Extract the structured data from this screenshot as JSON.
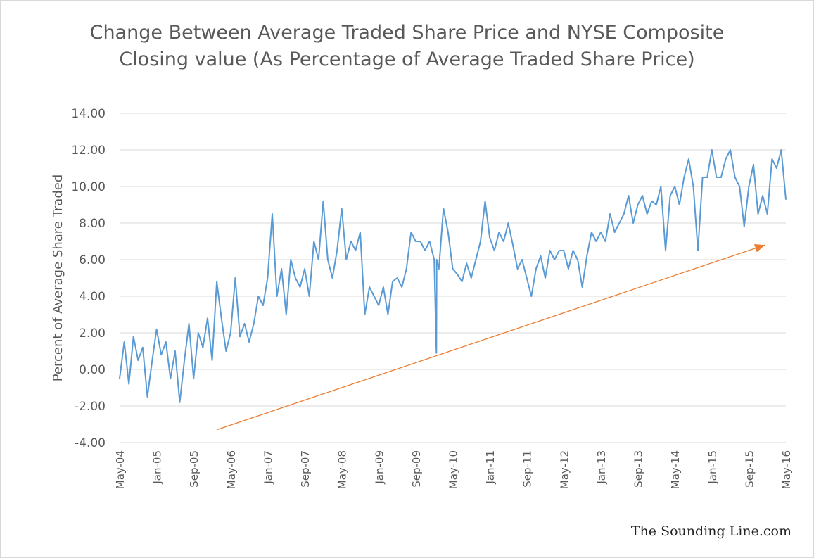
{
  "chart_data": {
    "type": "line",
    "title_line1": "Change Between Average Traded Share Price and NYSE Composite",
    "title_line2": "Closing value (As Percentage of Average Traded Share Price)",
    "xlabel": "",
    "ylabel": "Percent of Average Share Traded",
    "ylim": [
      -4,
      14
    ],
    "yticks": [
      "-4.00",
      "-2.00",
      "0.00",
      "2.00",
      "4.00",
      "6.00",
      "8.00",
      "10.00",
      "12.00",
      "14.00"
    ],
    "xlim": [
      "2004-05",
      "2016-05"
    ],
    "xticks": [
      "May-04",
      "Jan-05",
      "Sep-05",
      "May-06",
      "Jan-07",
      "Sep-07",
      "May-08",
      "Jan-09",
      "Sep-09",
      "May-10",
      "Jan-11",
      "Sep-11",
      "May-12",
      "Jan-13",
      "Sep-13",
      "May-14",
      "Jan-15",
      "Sep-15",
      "May-16"
    ],
    "grid": true,
    "legend": "none",
    "series_color": "#5b9bd5",
    "annotation_color": "#ed7d31",
    "series": [
      {
        "x": [
          "2004-05",
          "2004-06",
          "2004-07",
          "2004-08",
          "2004-09",
          "2004-10",
          "2004-11",
          "2004-12",
          "2005-01",
          "2005-02",
          "2005-03",
          "2005-04",
          "2005-05",
          "2005-06",
          "2005-07",
          "2005-08",
          "2005-09",
          "2005-10",
          "2005-11",
          "2005-12",
          "2006-01",
          "2006-02",
          "2006-03",
          "2006-04",
          "2006-05",
          "2006-06",
          "2006-07",
          "2006-08",
          "2006-09",
          "2006-10",
          "2006-11",
          "2006-12",
          "2007-01",
          "2007-02",
          "2007-03",
          "2007-04",
          "2007-05",
          "2007-06",
          "2007-07",
          "2007-08",
          "2007-09",
          "2007-10",
          "2007-11",
          "2007-12",
          "2008-01",
          "2008-02",
          "2008-03",
          "2008-04",
          "2008-05",
          "2008-06",
          "2008-07",
          "2008-08",
          "2008-09",
          "2008-10",
          "2008-11",
          "2008-12",
          "2009-01",
          "2009-02",
          "2009-03",
          "2009-04",
          "2009-05",
          "2009-06",
          "2009-07",
          "2009-08",
          "2009-09",
          "2009-10",
          "2009-11",
          "2009-12",
          "2010-01",
          "2010-01-15",
          "2010-01-17",
          "2010-02",
          "2010-03",
          "2010-04",
          "2010-05",
          "2010-06",
          "2010-07",
          "2010-08",
          "2010-09",
          "2010-10",
          "2010-11",
          "2010-12",
          "2011-01",
          "2011-02",
          "2011-03",
          "2011-04",
          "2011-05",
          "2011-06",
          "2011-07",
          "2011-08",
          "2011-09",
          "2011-10",
          "2011-11",
          "2011-12",
          "2012-01",
          "2012-02",
          "2012-03",
          "2012-04",
          "2012-05",
          "2012-06",
          "2012-07",
          "2012-08",
          "2012-09",
          "2012-10",
          "2012-11",
          "2012-12",
          "2013-01",
          "2013-02",
          "2013-03",
          "2013-04",
          "2013-05",
          "2013-06",
          "2013-07",
          "2013-08",
          "2013-09",
          "2013-10",
          "2013-11",
          "2013-12",
          "2014-01",
          "2014-02",
          "2014-03",
          "2014-04",
          "2014-05",
          "2014-06",
          "2014-07",
          "2014-08",
          "2014-09",
          "2014-10",
          "2014-11",
          "2014-12",
          "2015-01",
          "2015-02",
          "2015-03",
          "2015-04",
          "2015-05",
          "2015-06",
          "2015-07",
          "2015-08",
          "2015-09",
          "2015-10",
          "2015-11",
          "2015-12",
          "2016-01",
          "2016-02",
          "2016-03",
          "2016-04",
          "2016-05"
        ],
        "values": [
          -0.5,
          1.5,
          -0.8,
          1.8,
          0.5,
          1.2,
          -1.5,
          0.4,
          2.2,
          0.8,
          1.5,
          -0.5,
          1.0,
          -1.8,
          0.5,
          2.5,
          -0.5,
          2.0,
          1.2,
          2.8,
          0.5,
          4.8,
          2.8,
          1.0,
          2.0,
          5.0,
          1.8,
          2.5,
          1.5,
          2.5,
          4.0,
          3.5,
          5.0,
          8.5,
          4.0,
          5.5,
          3.0,
          6.0,
          5.0,
          4.5,
          5.5,
          4.0,
          7.0,
          6.0,
          9.2,
          6.0,
          5.0,
          6.5,
          8.8,
          6.0,
          7.0,
          6.5,
          7.5,
          3.0,
          4.5,
          4.0,
          3.5,
          4.5,
          3.0,
          4.8,
          5.0,
          4.5,
          5.5,
          7.5,
          7.0,
          7.0,
          6.5,
          7.0,
          6.0,
          0.9,
          6.0,
          5.5,
          8.8,
          7.5,
          5.5,
          5.2,
          4.8,
          5.8,
          5.0,
          6.0,
          7.0,
          9.2,
          7.2,
          6.5,
          7.5,
          7.0,
          8.0,
          6.8,
          5.5,
          6.0,
          5.0,
          4.0,
          5.5,
          6.2,
          5.0,
          6.5,
          6.0,
          6.5,
          6.5,
          5.5,
          6.5,
          6.0,
          4.5,
          6.2,
          7.5,
          7.0,
          7.5,
          7.0,
          8.5,
          7.5,
          8.0,
          8.5,
          9.5,
          8.0,
          9.0,
          9.5,
          8.5,
          9.2,
          9.0,
          10.0,
          6.5,
          9.5,
          10.0,
          9.0,
          10.5,
          11.5,
          10.0,
          6.5,
          10.5,
          10.5,
          12.0,
          10.5,
          10.5,
          11.5,
          12.0,
          10.5,
          10.0,
          7.8,
          10.0,
          11.2,
          8.5,
          9.5,
          8.5,
          11.5,
          11.0,
          12.0,
          9.3
        ]
      }
    ],
    "annotations": [
      {
        "type": "arrow",
        "from": {
          "x": "2006-02",
          "y": -3.3
        },
        "to": {
          "x": "2015-12-15",
          "y": 6.8
        }
      }
    ]
  },
  "watermark": "The Sounding Line.com"
}
